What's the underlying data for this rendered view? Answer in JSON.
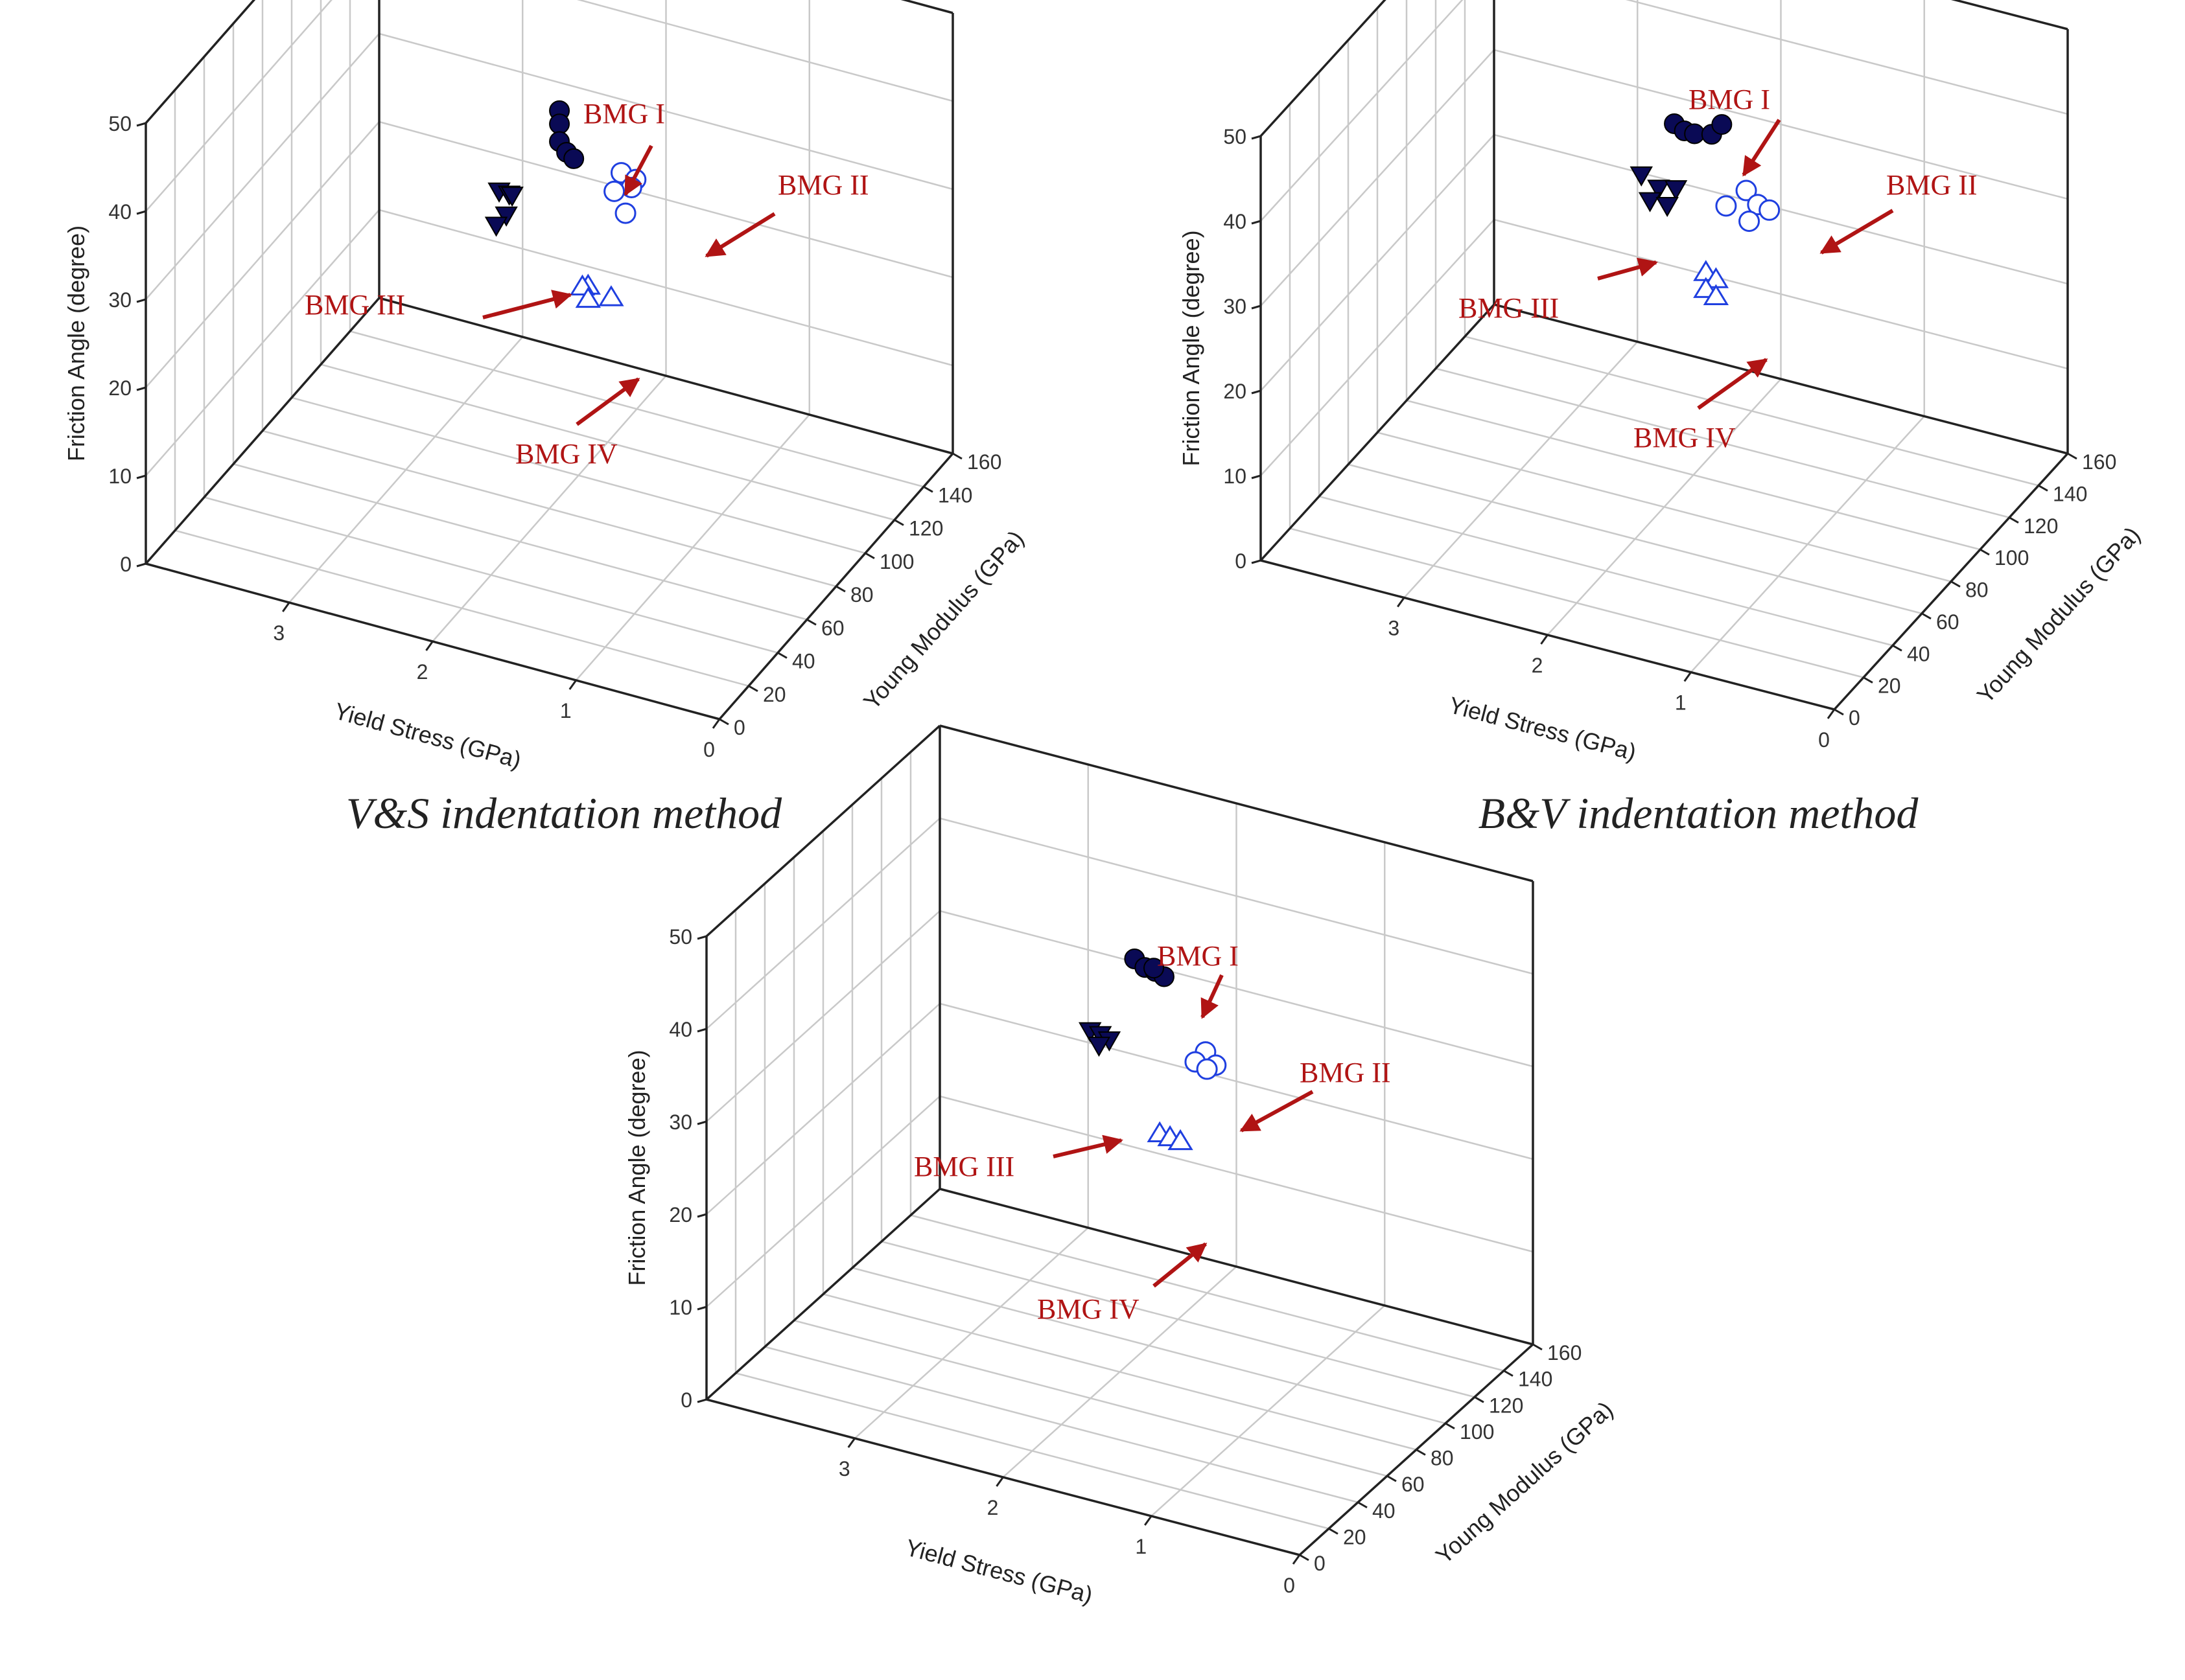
{
  "chart_data": [
    {
      "type": "scatter3d",
      "title": "V&S indentation method",
      "xlabel": "Yield Stress (GPa)",
      "ylabel": "Young Modulus (GPa)",
      "zlabel": "Friction Angle (degree)",
      "xlim": [
        0,
        4
      ],
      "ylim": [
        0,
        160
      ],
      "zlim": [
        0,
        50
      ],
      "xticks": [
        "0",
        "1",
        "2",
        "3"
      ],
      "yticks": [
        "0",
        "20",
        "40",
        "60",
        "80",
        "100",
        "120",
        "140",
        "160"
      ],
      "zticks": [
        "0",
        "10",
        "20",
        "30",
        "40",
        "50"
      ],
      "series": [
        {
          "name": "BMG I",
          "marker": "filled-circle",
          "color": "#0a0a55",
          "points": [
            [
              1.95,
              82,
              45
            ],
            [
              1.95,
              82,
              43.5
            ],
            [
              1.95,
              82,
              41.5
            ],
            [
              1.9,
              82,
              40.5
            ],
            [
              1.85,
              82,
              40
            ]
          ]
        },
        {
          "name": "BMG II",
          "marker": "open-circle",
          "color": "#1f3fe0",
          "points": [
            [
              1.6,
              90,
              38
            ],
            [
              1.55,
              95,
              36.5
            ],
            [
              1.6,
              97,
              35
            ],
            [
              1.7,
              95,
              34.5
            ],
            [
              1.55,
              88,
              34
            ]
          ]
        },
        {
          "name": "BMG III",
          "marker": "filled-triangle-down",
          "color": "#0a0a55",
          "points": [
            [
              2.35,
              80,
              34.5
            ],
            [
              2.3,
              82,
              34
            ],
            [
              2.3,
              84,
              33.5
            ],
            [
              2.3,
              80,
              32
            ],
            [
              2.35,
              78,
              31
            ]
          ]
        },
        {
          "name": "BMG IV",
          "marker": "open-triangle-up",
          "color": "#1f3fe0",
          "points": [
            [
              1.75,
              82,
              26
            ],
            [
              1.8,
              83,
              25.5
            ],
            [
              1.75,
              82,
              24.5
            ],
            [
              1.65,
              88,
              24
            ]
          ]
        }
      ],
      "annotations": [
        "BMG I",
        "BMG II",
        "BMG III",
        "BMG IV"
      ]
    },
    {
      "type": "scatter3d",
      "title": "B&V indentation method",
      "xlabel": "Yield Stress (GPa)",
      "ylabel": "Young Modulus (GPa)",
      "zlabel": "Friction Angle (degree)",
      "xlim": [
        0,
        4
      ],
      "ylim": [
        0,
        160
      ],
      "zlim": [
        0,
        50
      ],
      "xticks": [
        "0",
        "1",
        "2",
        "3"
      ],
      "yticks": [
        "0",
        "20",
        "40",
        "60",
        "80",
        "100",
        "120",
        "140",
        "160"
      ],
      "zticks": [
        "0",
        "10",
        "20",
        "30",
        "40",
        "50"
      ],
      "series": [
        {
          "name": "BMG I",
          "marker": "filled-circle",
          "color": "#0a0a55",
          "points": [
            [
              1.95,
              82,
              45
            ],
            [
              1.9,
              84,
              44
            ],
            [
              1.85,
              86,
              43.5
            ],
            [
              1.75,
              88,
              43.5
            ],
            [
              1.7,
              90,
              44.5
            ]
          ]
        },
        {
          "name": "BMG II",
          "marker": "open-circle",
          "color": "#1f3fe0",
          "points": [
            [
              1.55,
              92,
              37
            ],
            [
              1.65,
              88,
              35.5
            ],
            [
              1.5,
              95,
              35
            ],
            [
              1.45,
              98,
              34
            ],
            [
              1.55,
              94,
              33
            ]
          ]
        },
        {
          "name": "BMG III",
          "marker": "filled-triangle-down",
          "color": "#0a0a55",
          "points": [
            [
              2.2,
              84,
              37.5
            ],
            [
              2.1,
              86,
              36
            ],
            [
              2.0,
              88,
              36
            ],
            [
              2.15,
              85,
              34.5
            ],
            [
              2.05,
              87,
              34
            ]
          ]
        },
        {
          "name": "BMG IV",
          "marker": "open-triangle-up",
          "color": "#1f3fe0",
          "points": [
            [
              1.75,
              84,
              28
            ],
            [
              1.7,
              86,
              27
            ],
            [
              1.75,
              84,
              26
            ],
            [
              1.7,
              86,
              25
            ]
          ]
        }
      ],
      "annotations": [
        "BMG I",
        "BMG II",
        "BMG III",
        "BMG IV"
      ]
    },
    {
      "type": "scatter3d",
      "title": "",
      "xlabel": "Yield Stress (GPa)",
      "ylabel": "Young Modulus (GPa)",
      "zlabel": "Friction Angle (degree)",
      "xlim": [
        0,
        4
      ],
      "ylim": [
        0,
        160
      ],
      "zlim": [
        0,
        50
      ],
      "xticks": [
        "0",
        "1",
        "2",
        "3"
      ],
      "yticks": [
        "0",
        "20",
        "40",
        "60",
        "80",
        "100",
        "120",
        "140",
        "160"
      ],
      "zticks": [
        "0",
        "10",
        "20",
        "30",
        "40",
        "50"
      ],
      "series": [
        {
          "name": "BMG I",
          "marker": "filled-circle",
          "color": "#0a0a55",
          "points": [
            [
              1.9,
              80,
              45
            ],
            [
              1.85,
              82,
              44
            ],
            [
              1.8,
              84,
              43.5
            ],
            [
              1.75,
              85,
              43
            ],
            [
              1.8,
              83,
              44
            ]
          ]
        },
        {
          "name": "BMG II",
          "marker": "open-circle",
          "color": "#1f3fe0",
          "points": [
            [
              1.5,
              88,
              35.5
            ],
            [
              1.55,
              86,
              34.5
            ],
            [
              1.45,
              90,
              34
            ],
            [
              1.5,
              89,
              33.5
            ]
          ]
        },
        {
          "name": "BMG III",
          "marker": "filled-triangle-down",
          "color": "#0a0a55",
          "points": [
            [
              2.2,
              80,
              36
            ],
            [
              2.15,
              82,
              35.5
            ],
            [
              2.1,
              83,
              35
            ],
            [
              2.15,
              81,
              34.5
            ]
          ]
        },
        {
          "name": "BMG IV",
          "marker": "open-triangle-up",
          "color": "#1f3fe0",
          "points": [
            [
              1.75,
              82,
              26.5
            ],
            [
              1.7,
              84,
              26
            ],
            [
              1.65,
              86,
              25.5
            ]
          ]
        }
      ],
      "annotations": [
        "BMG I",
        "BMG II",
        "BMG III",
        "BMG IV"
      ]
    }
  ],
  "colors": {
    "arrow": "#b01414",
    "label": "#b01414",
    "grid": "#c9c9c9",
    "axis": "#222222"
  }
}
